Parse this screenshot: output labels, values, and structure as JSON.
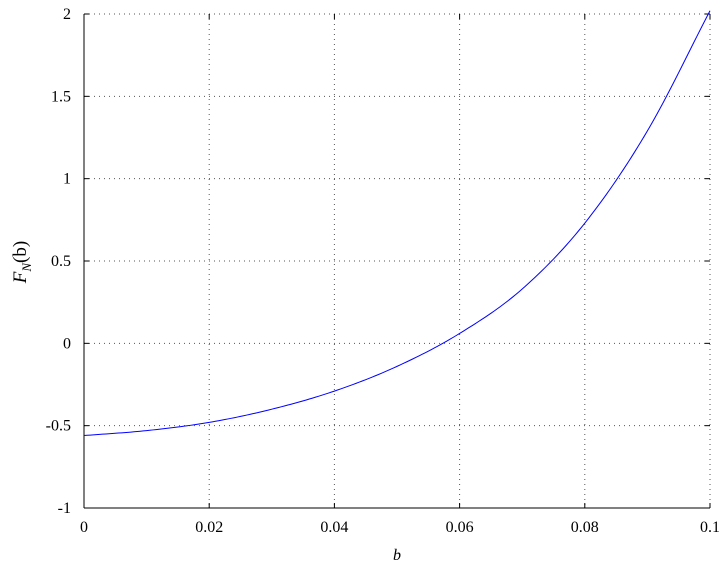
{
  "chart_data": {
    "type": "line",
    "title": "",
    "xlabel": "b",
    "ylabel_main": "F",
    "ylabel_sub": "N",
    "ylabel_arg": "(b)",
    "xlim": [
      0,
      0.1
    ],
    "ylim": [
      -1,
      2
    ],
    "grid": true,
    "x_ticks": [
      0,
      0.02,
      0.04,
      0.06,
      0.08,
      0.1
    ],
    "x_tick_labels": [
      "0",
      "0.02",
      "0.04",
      "0.06",
      "0.08",
      "0.1"
    ],
    "y_ticks": [
      -1,
      -0.5,
      0,
      0.5,
      1,
      1.5,
      2
    ],
    "y_tick_labels": [
      "-1",
      "-0.5",
      "0",
      "0.5",
      "1",
      "1.5",
      "2"
    ],
    "series": [
      {
        "color": "#0000ff",
        "x": [
          0,
          0.01,
          0.02,
          0.03,
          0.04,
          0.05,
          0.06,
          0.07,
          0.08,
          0.09,
          0.1
        ],
        "y": [
          -0.56,
          -0.53,
          -0.48,
          -0.4,
          -0.29,
          -0.14,
          0.06,
          0.33,
          0.73,
          1.29,
          2.02
        ]
      }
    ]
  }
}
